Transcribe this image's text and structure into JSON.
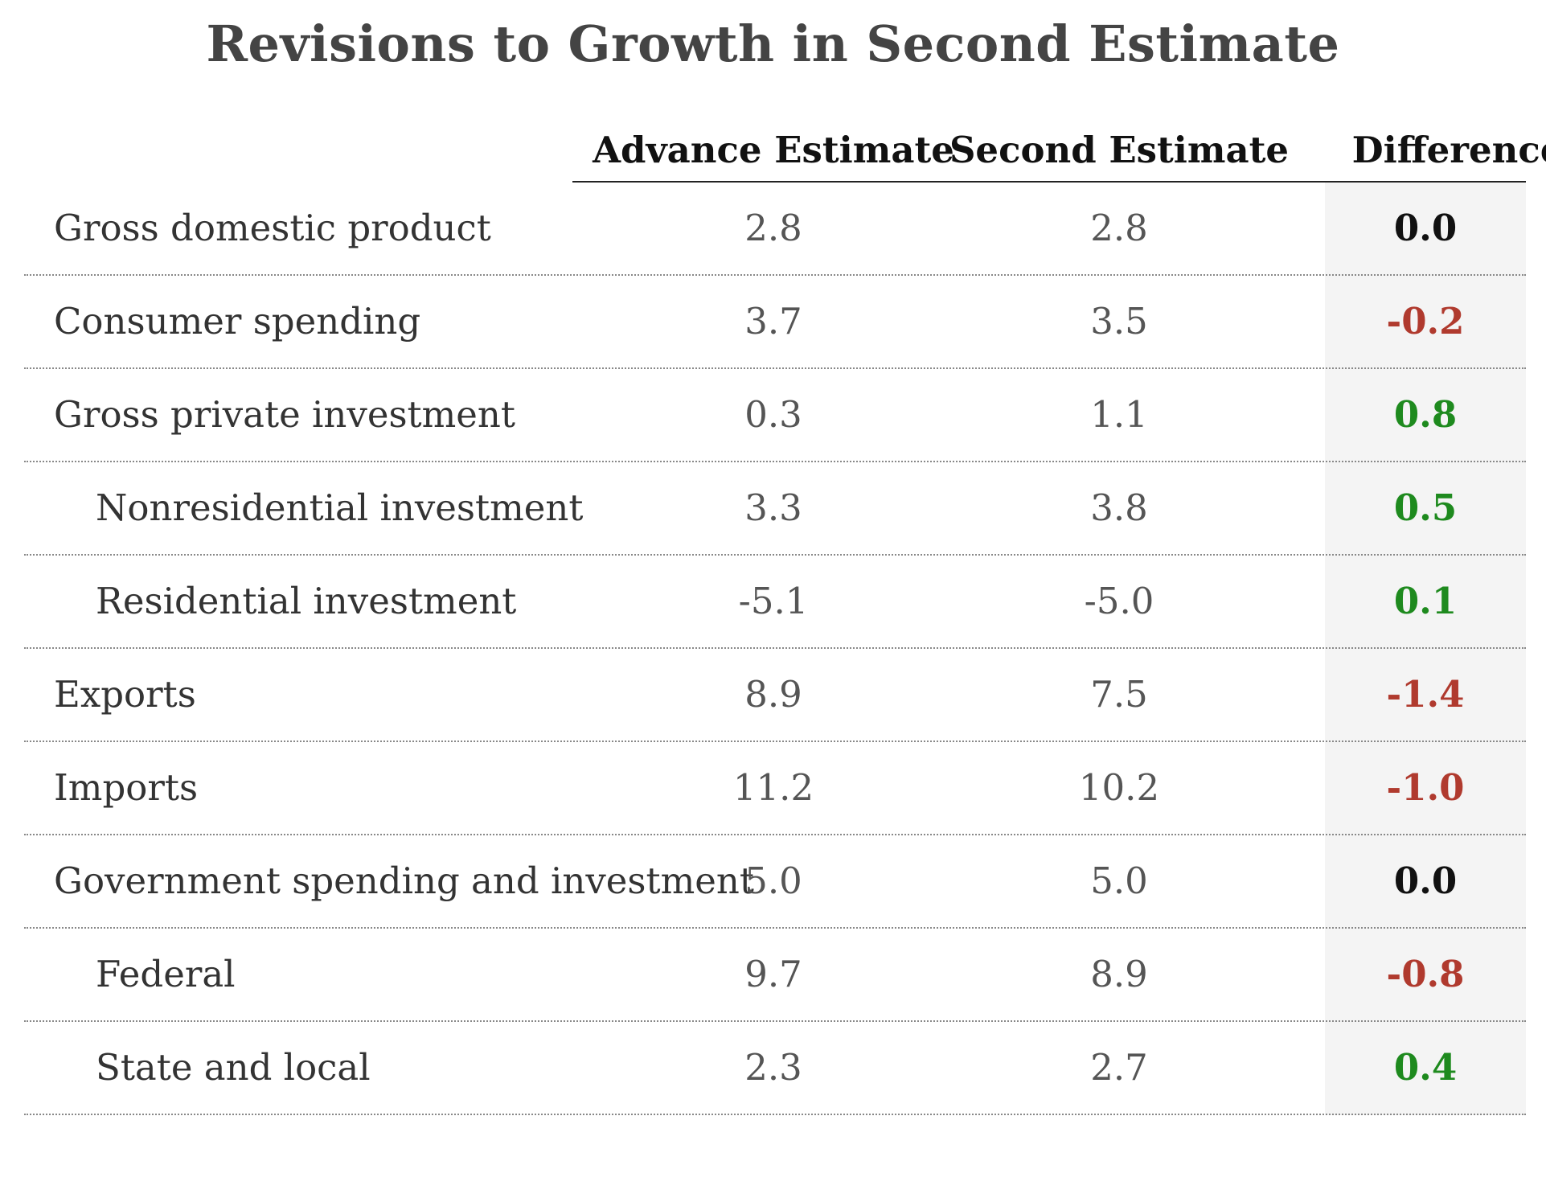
{
  "chart_data": {
    "type": "table",
    "title": "Revisions to Growth in Second Estimate",
    "columns": [
      "Advance Estimate",
      "Second Estimate",
      "Difference"
    ],
    "rows": [
      {
        "label": "Gross domestic product",
        "indent": false,
        "advance": "2.8",
        "second": "2.8",
        "difference": "0.0",
        "sign": "zero"
      },
      {
        "label": "Consumer spending",
        "indent": false,
        "advance": "3.7",
        "second": "3.5",
        "difference": "-0.2",
        "sign": "negative"
      },
      {
        "label": "Gross private investment",
        "indent": false,
        "advance": "0.3",
        "second": "1.1",
        "difference": "0.8",
        "sign": "positive"
      },
      {
        "label": "Nonresidential investment",
        "indent": true,
        "advance": "3.3",
        "second": "3.8",
        "difference": "0.5",
        "sign": "positive"
      },
      {
        "label": "Residential investment",
        "indent": true,
        "advance": "-5.1",
        "second": "-5.0",
        "difference": "0.1",
        "sign": "positive"
      },
      {
        "label": "Exports",
        "indent": false,
        "advance": "8.9",
        "second": "7.5",
        "difference": "-1.4",
        "sign": "negative"
      },
      {
        "label": "Imports",
        "indent": false,
        "advance": "11.2",
        "second": "10.2",
        "difference": "-1.0",
        "sign": "negative"
      },
      {
        "label": "Government spending and investment",
        "indent": false,
        "advance": "5.0",
        "second": "5.0",
        "difference": "0.0",
        "sign": "zero"
      },
      {
        "label": "Federal",
        "indent": true,
        "advance": "9.7",
        "second": "8.9",
        "difference": "-0.8",
        "sign": "negative"
      },
      {
        "label": "State and local",
        "indent": true,
        "advance": "2.3",
        "second": "2.7",
        "difference": "0.4",
        "sign": "positive"
      }
    ],
    "colors": {
      "positive": "#1e8a1e",
      "negative": "#b03a2e",
      "zero": "#111111",
      "difference_column_background": "#f4f4f4"
    }
  }
}
